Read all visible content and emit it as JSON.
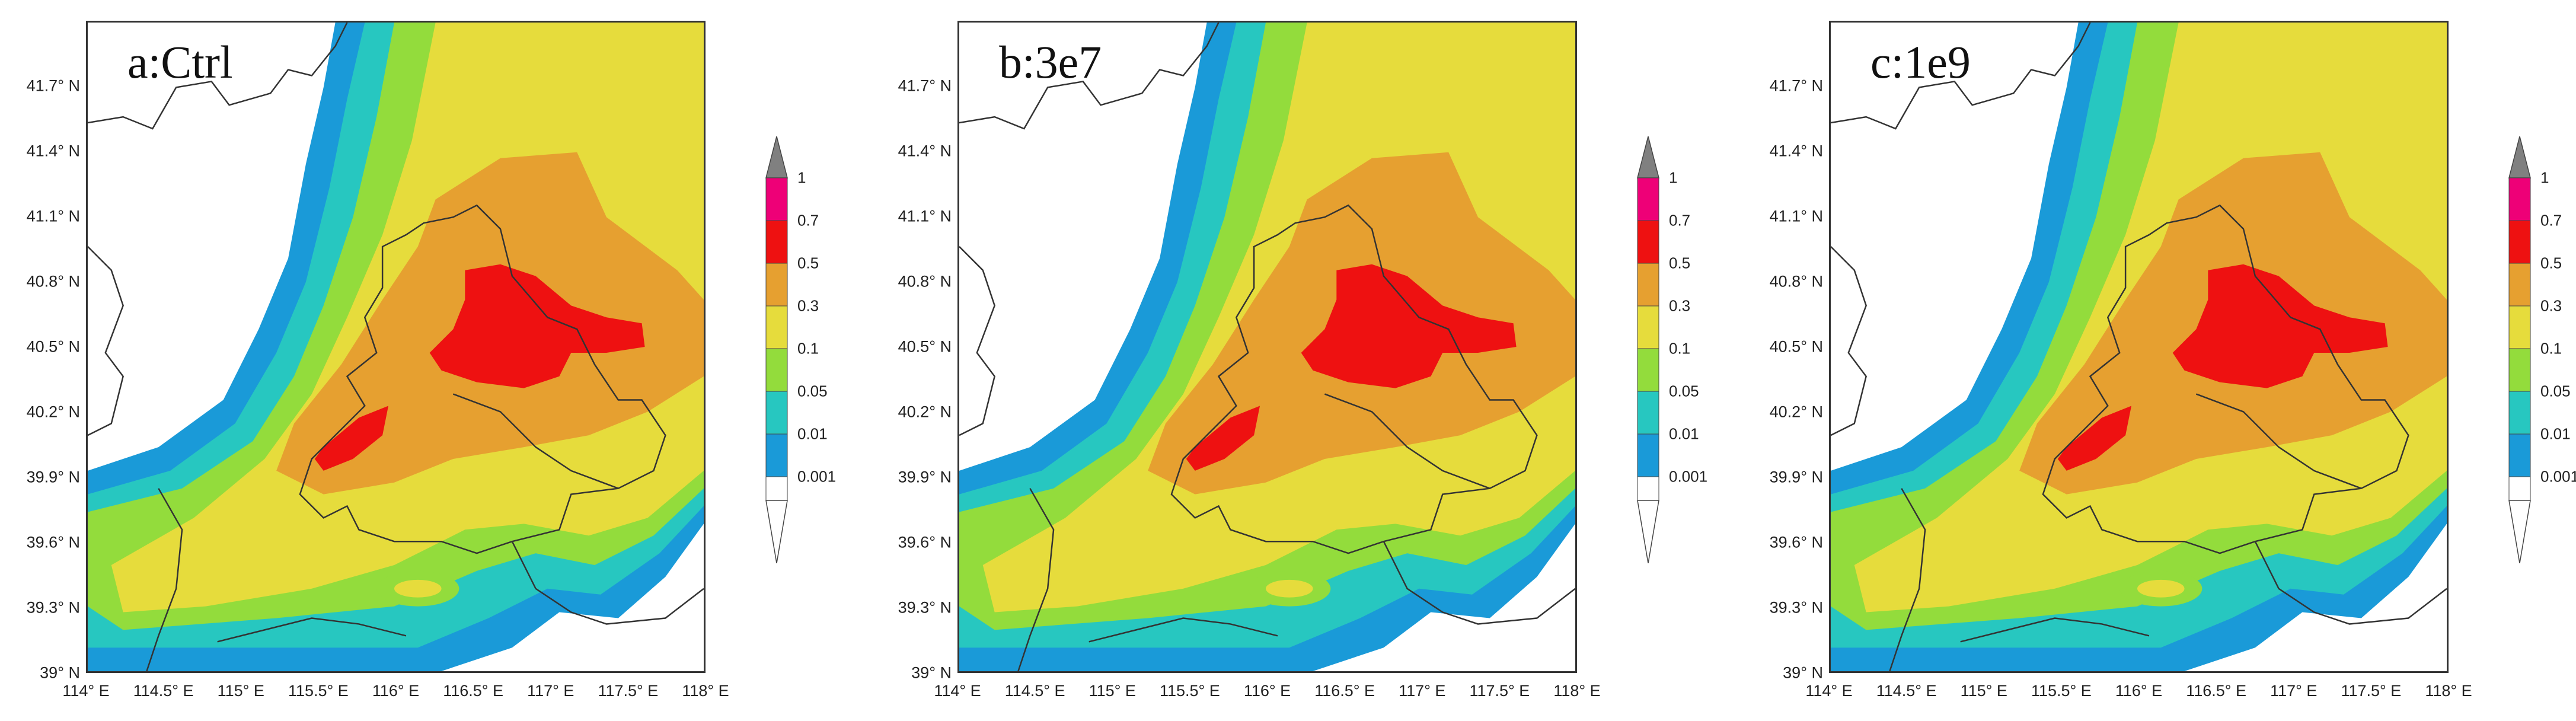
{
  "panels": [
    {
      "label": "a:Ctrl"
    },
    {
      "label": "b:3e7"
    },
    {
      "label": "c:1e9"
    }
  ],
  "latitude_ticks": [
    "41.7° N",
    "41.4° N",
    "41.1° N",
    "40.8° N",
    "40.5° N",
    "40.2° N",
    "39.9° N",
    "39.6° N",
    "39.3° N",
    "39° N"
  ],
  "longitude_ticks": [
    "114° E",
    "114.5° E",
    "115° E",
    "115.5° E",
    "116° E",
    "116.5° E",
    "117° E",
    "117.5° E",
    "118° E"
  ],
  "colorbar": {
    "levels": [
      "1",
      "0.7",
      "0.5",
      "0.3",
      "0.1",
      "0.05",
      "0.01",
      "0.001"
    ],
    "colors": [
      "#ee0077",
      "#ee1111",
      "#e6a030",
      "#e6dc3c",
      "#93dc3c",
      "#27c7c0",
      "#1a9ad8",
      "#ffffff",
      "#808080"
    ]
  }
}
